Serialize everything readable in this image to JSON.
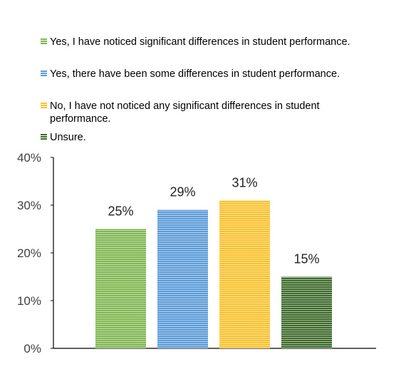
{
  "chart_data": {
    "type": "bar",
    "title": "",
    "xlabel": "",
    "ylabel": "",
    "categories": [
      "Yes, I have noticed significant differences in student performance.",
      "Yes, there have been some differences in student performance.",
      "No, I have not noticed any significant differences in student performance.",
      "Unsure."
    ],
    "values": [
      25,
      29,
      31,
      15
    ],
    "data_labels": [
      "25%",
      "29%",
      "31%",
      "15%"
    ],
    "colors": [
      "#7fb650",
      "#5a9ad6",
      "#f9c12c",
      "#3d6a2a"
    ],
    "ylim": [
      0,
      40
    ],
    "yticks": [
      0,
      10,
      20,
      30,
      40
    ],
    "ytick_labels": [
      "0%",
      "10%",
      "20%",
      "30%",
      "40%"
    ],
    "grid": false,
    "legend_position": "top",
    "bar_pattern": "horizontal-stripes"
  }
}
